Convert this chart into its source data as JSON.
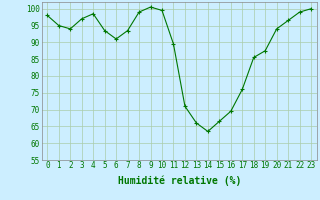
{
  "x": [
    0,
    1,
    2,
    3,
    4,
    5,
    6,
    7,
    8,
    9,
    10,
    11,
    12,
    13,
    14,
    15,
    16,
    17,
    18,
    19,
    20,
    21,
    22,
    23
  ],
  "y": [
    98,
    95,
    94,
    97,
    98.5,
    93.5,
    91,
    93.5,
    99,
    100.5,
    99.5,
    89.5,
    71,
    66,
    63.5,
    66.5,
    69.5,
    76,
    85.5,
    87.5,
    94,
    96.5,
    99,
    100
  ],
  "line_color": "#007700",
  "marker": "+",
  "marker_size": 3,
  "background_color": "#cceeff",
  "grid_color": "#aaccaa",
  "xlabel": "Humidité relative (%)",
  "xlabel_color": "#007700",
  "ylim": [
    55,
    102
  ],
  "yticks": [
    55,
    60,
    65,
    70,
    75,
    80,
    85,
    90,
    95,
    100
  ],
  "xticks": [
    0,
    1,
    2,
    3,
    4,
    5,
    6,
    7,
    8,
    9,
    10,
    11,
    12,
    13,
    14,
    15,
    16,
    17,
    18,
    19,
    20,
    21,
    22,
    23
  ],
  "tick_fontsize": 5.5,
  "xlabel_fontsize": 7
}
